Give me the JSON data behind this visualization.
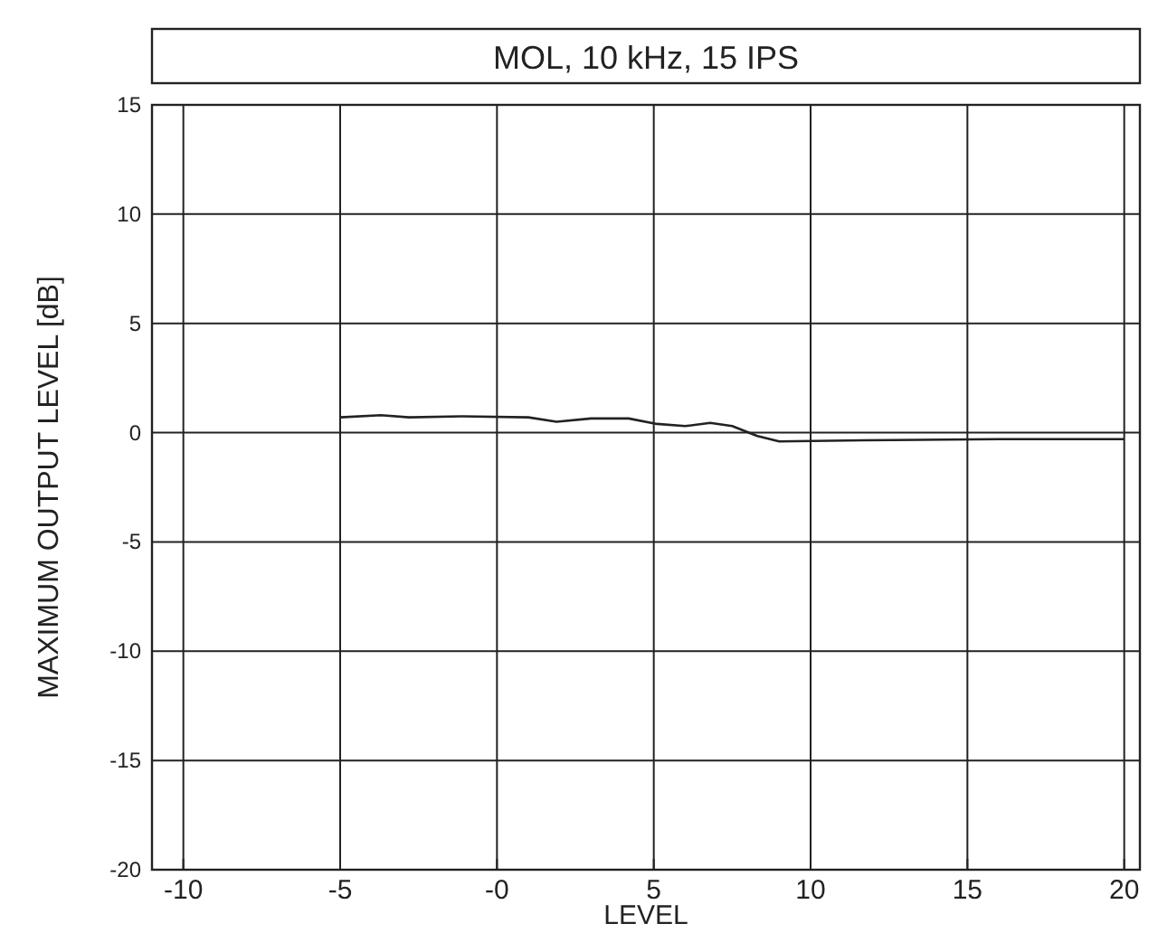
{
  "chart_data": {
    "type": "line",
    "title": "MOL, 10 kHz, 15 IPS",
    "xlabel": "LEVEL",
    "ylabel": "MAXIMUM OUTPUT LEVEL [dB]",
    "xlim": [
      -11,
      20.5
    ],
    "xticks": [
      -10,
      -5,
      {
        "value": 0,
        "label": "-0"
      },
      5,
      10,
      15,
      20
    ],
    "ylim": [
      -20,
      15
    ],
    "yticks": [
      -20,
      -15,
      -10,
      -5,
      0,
      5,
      10,
      15
    ],
    "grid": true,
    "series": [
      {
        "color": "#222222",
        "x": [
          -5,
          -3.7,
          -2.8,
          -1.1,
          1,
          1.9,
          3,
          4.2,
          5.1,
          6,
          6.8,
          7.5,
          8.3,
          9,
          11.7,
          16,
          20
        ],
        "values": [
          0.7,
          0.8,
          0.7,
          0.75,
          0.7,
          0.5,
          0.65,
          0.65,
          0.4,
          0.3,
          0.45,
          0.3,
          -0.15,
          -0.4,
          -0.35,
          -0.3,
          -0.3
        ]
      }
    ]
  }
}
